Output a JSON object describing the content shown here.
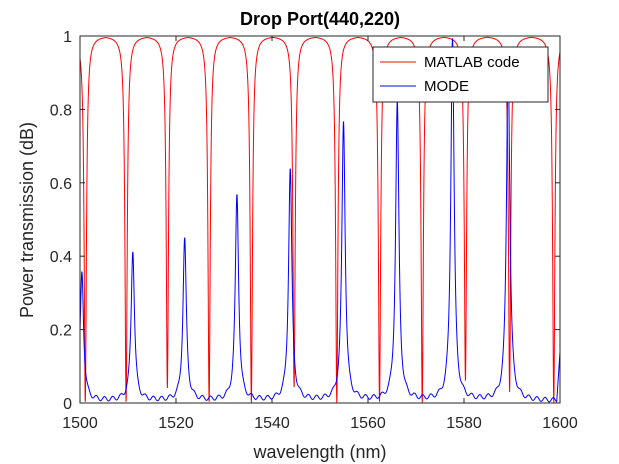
{
  "chart_data": {
    "type": "line",
    "title": "Drop Port(440,220)",
    "xlabel": "wavelength (nm)",
    "ylabel": "Power transmission (dB)",
    "xlim": [
      1500,
      1600
    ],
    "ylim": [
      0,
      1
    ],
    "xticks": [
      "1500",
      "1520",
      "1540",
      "1560",
      "1580",
      "1600"
    ],
    "yticks": [
      "0",
      "0.2",
      "0.4",
      "0.6",
      "0.8",
      "1"
    ],
    "grid": false,
    "legend_position": "top-right",
    "series": [
      {
        "name": "MATLAB code",
        "color": "#ff0000",
        "baseline": 1.0,
        "dips": [
          {
            "x": 1501.1,
            "min": 0.0
          },
          {
            "x": 1509.6,
            "min": 0.0
          },
          {
            "x": 1518.2,
            "min": 0.04
          },
          {
            "x": 1526.9,
            "min": 0.0
          },
          {
            "x": 1535.7,
            "min": 0.0
          },
          {
            "x": 1544.6,
            "min": 0.04
          },
          {
            "x": 1553.5,
            "min": 0.0
          },
          {
            "x": 1562.4,
            "min": 0.0
          },
          {
            "x": 1571.3,
            "min": 0.0
          },
          {
            "x": 1580.3,
            "min": 0.06
          },
          {
            "x": 1589.5,
            "min": 0.03
          },
          {
            "x": 1598.7,
            "min": 0.0
          }
        ]
      },
      {
        "name": "MODE",
        "color": "#0000ff",
        "baseline": 0.0,
        "peaks": [
          {
            "x": 1500.4,
            "y": 0.35
          },
          {
            "x": 1511.0,
            "y": 0.41
          },
          {
            "x": 1521.8,
            "y": 0.44
          },
          {
            "x": 1532.7,
            "y": 0.56
          },
          {
            "x": 1543.8,
            "y": 0.63
          },
          {
            "x": 1554.9,
            "y": 0.76
          },
          {
            "x": 1566.1,
            "y": 0.81
          },
          {
            "x": 1577.6,
            "y": 0.99
          },
          {
            "x": 1589.2,
            "y": 0.93
          }
        ],
        "end_value": 0.14
      }
    ]
  }
}
